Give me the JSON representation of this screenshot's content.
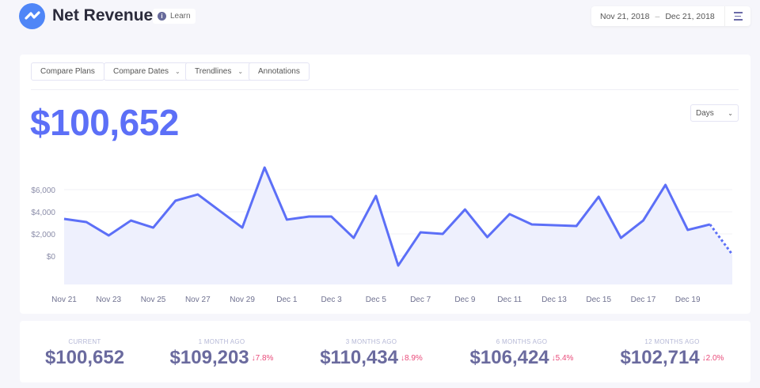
{
  "header": {
    "title": "Net Revenue",
    "learn_label": "Learn",
    "date_start": "Nov 21, 2018",
    "date_sep": "–",
    "date_end": "Dec 21, 2018"
  },
  "toolbar": {
    "buttons": [
      {
        "label": "Compare Plans",
        "dropdown": false
      },
      {
        "label": "Compare Dates",
        "dropdown": true
      },
      {
        "label": "Trendlines",
        "dropdown": true
      },
      {
        "label": "Annotations",
        "dropdown": false
      }
    ]
  },
  "summary": {
    "total": "$100,652",
    "interval": "Days"
  },
  "chart_data": {
    "type": "area",
    "accent": "#5c6ff7",
    "fill": "#eef0fd",
    "grid": true,
    "ylim": [
      -2500,
      9000
    ],
    "yticks": [
      {
        "v": 6000,
        "label": "$6,000"
      },
      {
        "v": 4000,
        "label": "$4,000"
      },
      {
        "v": 2000,
        "label": "$2,000"
      },
      {
        "v": 0,
        "label": "$0"
      }
    ],
    "xtick_labels": [
      "Nov 21",
      "Nov 23",
      "Nov 25",
      "Nov 27",
      "Nov 29",
      "Dec 1",
      "Dec 3",
      "Dec 5",
      "Dec 7",
      "Dec 9",
      "Dec 11",
      "Dec 13",
      "Dec 15",
      "Dec 17",
      "Dec 19"
    ],
    "x": [
      "Nov 21",
      "Nov 22",
      "Nov 23",
      "Nov 24",
      "Nov 25",
      "Nov 26",
      "Nov 27",
      "Nov 28",
      "Nov 29",
      "Nov 30",
      "Dec 1",
      "Dec 2",
      "Dec 3",
      "Dec 4",
      "Dec 5",
      "Dec 6",
      "Dec 7",
      "Dec 8",
      "Dec 9",
      "Dec 10",
      "Dec 11",
      "Dec 12",
      "Dec 13",
      "Dec 14",
      "Dec 15",
      "Dec 16",
      "Dec 17",
      "Dec 18",
      "Dec 19",
      "Dec 20",
      "Dec 21"
    ],
    "values": [
      3360,
      3070,
      1860,
      3210,
      2570,
      5000,
      5570,
      4070,
      2570,
      8000,
      3290,
      3570,
      3570,
      1640,
      5430,
      -860,
      2140,
      2000,
      4210,
      1710,
      3790,
      2860,
      2790,
      2710,
      5360,
      1640,
      3210,
      6430,
      2360,
      2860,
      140
    ],
    "partial_last_point": true
  },
  "stats": [
    {
      "label": "CURRENT",
      "value": "$100,652",
      "change": ""
    },
    {
      "label": "1 MONTH AGO",
      "value": "$109,203",
      "change": "7.8%"
    },
    {
      "label": "3 MONTHS AGO",
      "value": "$110,434",
      "change": "8.9%"
    },
    {
      "label": "6 MONTHS AGO",
      "value": "$106,424",
      "change": "5.4%"
    },
    {
      "label": "12 MONTHS AGO",
      "value": "$102,714",
      "change": "2.0%"
    }
  ]
}
